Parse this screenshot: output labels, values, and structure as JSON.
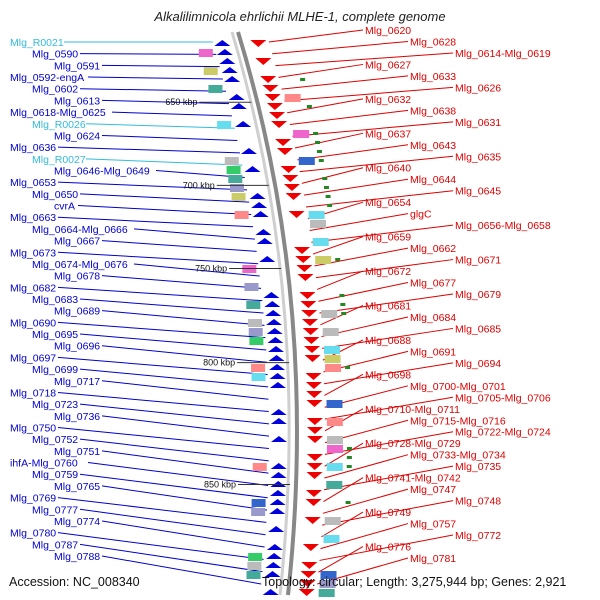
{
  "title": "Alkalilimnicola ehrlichii MLHE-1, complete genome",
  "accession": "Accession: NC_008340",
  "summary": "Topology: circular; Length: 3,275,944 bp; Genes: 2,921",
  "colors": {
    "left_gene": "#0000cc",
    "right_gene": "#dd0000",
    "rna": "#33bbdd",
    "backbone": "#888888"
  },
  "kbp_ticks": [
    {
      "label": "650 kbp",
      "side": "left",
      "pos": 0.06
    },
    {
      "label": "700 kbp",
      "side": "left",
      "pos": 0.21
    },
    {
      "label": "750 kbp",
      "side": "left",
      "pos": 0.36
    },
    {
      "label": "800 kbp",
      "side": "left",
      "pos": 0.53
    },
    {
      "label": "850 kbp",
      "side": "left",
      "pos": 0.75
    }
  ],
  "left_labels": [
    {
      "text": "Mlg_R0021",
      "kind": "rna"
    },
    {
      "text": "Mlg_0590",
      "kind": "gene"
    },
    {
      "text": "Mlg_0591",
      "kind": "gene"
    },
    {
      "text": "Mlg_0592-engA",
      "kind": "gene"
    },
    {
      "text": "Mlg_0602",
      "kind": "gene"
    },
    {
      "text": "Mlg_0613",
      "kind": "gene"
    },
    {
      "text": "Mlg_0618-Mlg_0625",
      "kind": "gene"
    },
    {
      "text": "Mlg_R0026",
      "kind": "rna"
    },
    {
      "text": "Mlg_0624",
      "kind": "gene"
    },
    {
      "text": "Mlg_0636",
      "kind": "gene"
    },
    {
      "text": "Mlg_R0027",
      "kind": "rna"
    },
    {
      "text": "Mlg_0646-Mlg_0649",
      "kind": "gene"
    },
    {
      "text": "Mlg_0653",
      "kind": "gene"
    },
    {
      "text": "Mlg_0650",
      "kind": "gene"
    },
    {
      "text": "cvrA",
      "kind": "gene"
    },
    {
      "text": "Mlg_0663",
      "kind": "gene"
    },
    {
      "text": "Mlg_0664-Mlg_0666",
      "kind": "gene"
    },
    {
      "text": "Mlg_0667",
      "kind": "gene"
    },
    {
      "text": "Mlg_0673",
      "kind": "gene"
    },
    {
      "text": "Mlg_0674-Mlg_0676",
      "kind": "gene"
    },
    {
      "text": "Mlg_0678",
      "kind": "gene"
    },
    {
      "text": "Mlg_0682",
      "kind": "gene"
    },
    {
      "text": "Mlg_0683",
      "kind": "gene"
    },
    {
      "text": "Mlg_0689",
      "kind": "gene"
    },
    {
      "text": "Mlg_0690",
      "kind": "gene"
    },
    {
      "text": "Mlg_0695",
      "kind": "gene"
    },
    {
      "text": "Mlg_0696",
      "kind": "gene"
    },
    {
      "text": "Mlg_0697",
      "kind": "gene"
    },
    {
      "text": "Mlg_0699",
      "kind": "gene"
    },
    {
      "text": "Mlg_0717",
      "kind": "gene"
    },
    {
      "text": "Mlg_0718",
      "kind": "gene"
    },
    {
      "text": "Mlg_0723",
      "kind": "gene"
    },
    {
      "text": "Mlg_0736",
      "kind": "gene"
    },
    {
      "text": "Mlg_0750",
      "kind": "gene"
    },
    {
      "text": "Mlg_0752",
      "kind": "gene"
    },
    {
      "text": "Mlg_0751",
      "kind": "gene"
    },
    {
      "text": "ihfA-Mlg_0760",
      "kind": "gene"
    },
    {
      "text": "Mlg_0759",
      "kind": "gene"
    },
    {
      "text": "Mlg_0765",
      "kind": "gene"
    },
    {
      "text": "Mlg_0769",
      "kind": "gene"
    },
    {
      "text": "Mlg_0777",
      "kind": "gene"
    },
    {
      "text": "Mlg_0774",
      "kind": "gene"
    },
    {
      "text": "Mlg_0780",
      "kind": "gene"
    },
    {
      "text": "Mlg_0787",
      "kind": "gene"
    },
    {
      "text": "Mlg_0788",
      "kind": "gene"
    }
  ],
  "right_labels": [
    {
      "text": "Mlg_0620"
    },
    {
      "text": "Mlg_0628"
    },
    {
      "text": "Mlg_0614-Mlg_0619"
    },
    {
      "text": "Mlg_0627"
    },
    {
      "text": "Mlg_0633"
    },
    {
      "text": "Mlg_0626"
    },
    {
      "text": "Mlg_0632"
    },
    {
      "text": "Mlg_0638"
    },
    {
      "text": "Mlg_0631"
    },
    {
      "text": "Mlg_0637"
    },
    {
      "text": "Mlg_0643"
    },
    {
      "text": "Mlg_0635"
    },
    {
      "text": "Mlg_0640"
    },
    {
      "text": "Mlg_0644"
    },
    {
      "text": "Mlg_0645"
    },
    {
      "text": "Mlg_0654"
    },
    {
      "text": "glgC"
    },
    {
      "text": "Mlg_0656-Mlg_0658"
    },
    {
      "text": "Mlg_0659"
    },
    {
      "text": "Mlg_0662"
    },
    {
      "text": "Mlg_0671"
    },
    {
      "text": "Mlg_0672"
    },
    {
      "text": "Mlg_0677"
    },
    {
      "text": "Mlg_0679"
    },
    {
      "text": "Mlg_0681"
    },
    {
      "text": "Mlg_0684"
    },
    {
      "text": "Mlg_0685"
    },
    {
      "text": "Mlg_0688"
    },
    {
      "text": "Mlg_0691"
    },
    {
      "text": "Mlg_0694"
    },
    {
      "text": "Mlg_0698"
    },
    {
      "text": "Mlg_0700-Mlg_0701"
    },
    {
      "text": "Mlg_0705-Mlg_0706"
    },
    {
      "text": "Mlg_0710-Mlg_0711"
    },
    {
      "text": "Mlg_0715-Mlg_0716"
    },
    {
      "text": "Mlg_0722-Mlg_0724"
    },
    {
      "text": "Mlg_0728-Mlg_0729"
    },
    {
      "text": "Mlg_0733-Mlg_0734"
    },
    {
      "text": "Mlg_0735"
    },
    {
      "text": "Mlg_0741-Mlg_0742"
    },
    {
      "text": "Mlg_0747"
    },
    {
      "text": "Mlg_0748"
    },
    {
      "text": "Mlg_0749"
    },
    {
      "text": "Mlg_0757"
    },
    {
      "text": "Mlg_0772"
    },
    {
      "text": "Mlg_0776"
    },
    {
      "text": "Mlg_0781"
    }
  ]
}
